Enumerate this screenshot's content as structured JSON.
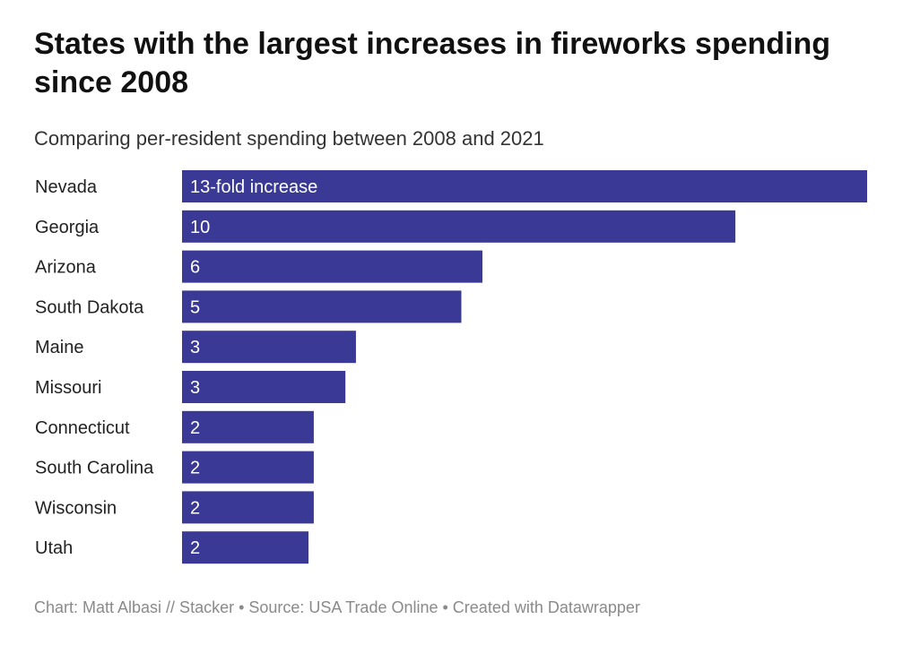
{
  "chart_data": {
    "type": "bar",
    "orientation": "horizontal",
    "title": "States with the largest increases in fireworks spending since 2008",
    "subtitle": "Comparing per-resident spending between 2008 and 2021",
    "categories": [
      "Nevada",
      "Georgia",
      "Arizona",
      "South Dakota",
      "Maine",
      "Missouri",
      "Connecticut",
      "South Carolina",
      "Wisconsin",
      "Utah"
    ],
    "values": [
      13.0,
      10.5,
      5.7,
      5.3,
      3.3,
      3.1,
      2.5,
      2.5,
      2.5,
      2.4
    ],
    "data_labels": [
      "13-fold increase",
      "10",
      "6",
      "5",
      "3",
      "3",
      "2",
      "2",
      "2",
      "2"
    ],
    "xlim": [
      0,
      13
    ],
    "bar_color": "#3a3a96",
    "grid": false
  },
  "footer": "Chart: Matt Albasi // Stacker • Source: USA Trade Online • Created with Datawrapper"
}
